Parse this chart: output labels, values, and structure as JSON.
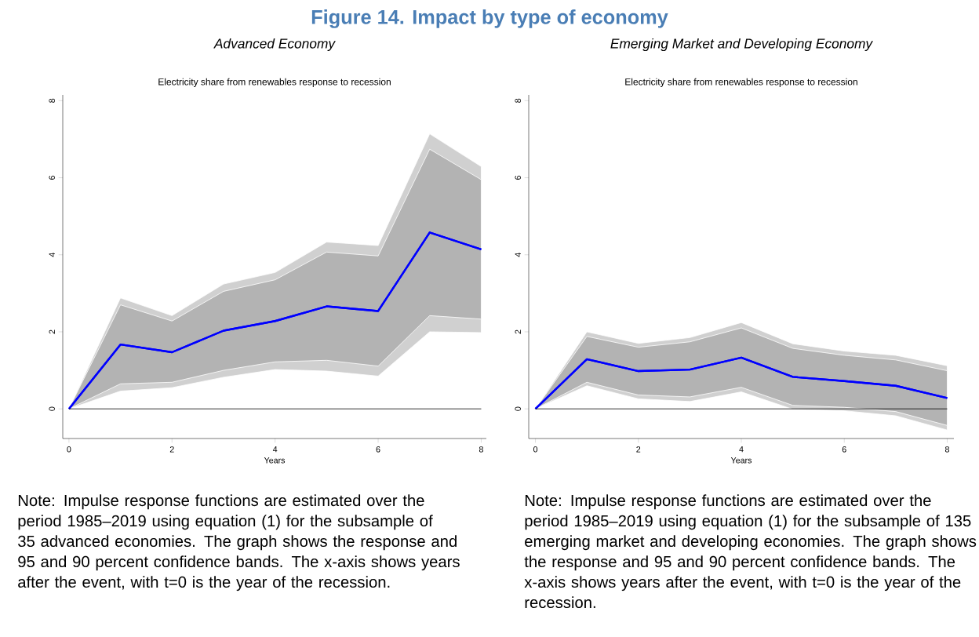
{
  "chart_data": [
    {
      "type": "line",
      "title": "Electricity share from renewables response to recession",
      "subtitle": "Advanced Economy",
      "xlabel": "Years",
      "annotations": [
        "Figure 14. Impact by type of economy",
        "Note: Impulse response functions are estimated over the period 1985–2019 using equation (1) for the subsample of 35 advanced economies. The graph shows the response and 95 and 90 percent confidence bands. The x-axis shows years after the event, with t=0 is the year of the recession."
      ],
      "x": [
        0,
        1,
        2,
        3,
        4,
        5,
        6,
        7,
        8
      ],
      "series": [
        {
          "color": "#0000ff",
          "values": [
            0,
            1.67,
            1.47,
            2.03,
            2.28,
            2.66,
            2.54,
            4.58,
            4.14
          ],
          "lower": [
            0,
            0.46,
            0.55,
            0.82,
            1.02,
            0.98,
            0.85,
            2.0,
            1.98
          ],
          "upper": [
            0,
            2.88,
            2.42,
            3.24,
            3.54,
            4.33,
            4.24,
            7.14,
            6.29
          ]
        },
        {
          "color": "#0000ff",
          "values": [
            0,
            1.67,
            1.47,
            2.03,
            2.28,
            2.66,
            2.54,
            4.58,
            4.14
          ],
          "lower": [
            0,
            0.65,
            0.69,
            1.0,
            1.22,
            1.26,
            1.11,
            2.42,
            2.33
          ],
          "upper": [
            0,
            2.7,
            2.28,
            3.05,
            3.35,
            4.07,
            3.97,
            6.74,
            5.95
          ]
        }
      ],
      "ref_lines": [
        {
          "axis": "y",
          "value": 0,
          "color": "#000000"
        }
      ],
      "xlim": [
        -0.12,
        8.1
      ],
      "ylim": [
        -0.77,
        8.15
      ],
      "xticks": [
        0,
        2,
        4,
        6,
        8
      ],
      "yticks": [
        0,
        2,
        4,
        6,
        8
      ],
      "grid": false
    },
    {
      "type": "line",
      "title": "Electricity share from renewables response to recession",
      "subtitle": "Emerging Market and Developing Economy",
      "xlabel": "Years",
      "annotations": [
        "Note: Impulse response functions are estimated over the period 1985–2019 using equation (1) for the subsample of 135 emerging market and developing economies. The graph shows the response and 95 and 90 percent confidence bands. The x-axis shows years after the event, with t=0 is the year of the recession."
      ],
      "x": [
        0,
        1,
        2,
        3,
        4,
        5,
        6,
        7,
        8
      ],
      "series": [
        {
          "color": "#0000ff",
          "values": [
            0,
            1.29,
            0.98,
            1.02,
            1.33,
            0.83,
            0.72,
            0.6,
            0.28
          ],
          "lower": [
            0,
            0.6,
            0.26,
            0.19,
            0.44,
            -0.01,
            -0.05,
            -0.18,
            -0.55
          ],
          "upper": [
            0,
            2.0,
            1.7,
            1.85,
            2.24,
            1.69,
            1.5,
            1.39,
            1.12
          ]
        },
        {
          "color": "#0000ff",
          "values": [
            0,
            1.29,
            0.98,
            1.02,
            1.33,
            0.83,
            0.72,
            0.6,
            0.28
          ],
          "lower": [
            0,
            0.69,
            0.36,
            0.31,
            0.56,
            0.09,
            0.04,
            -0.07,
            -0.43
          ],
          "upper": [
            0,
            1.88,
            1.6,
            1.74,
            2.1,
            1.57,
            1.39,
            1.27,
            0.99
          ]
        }
      ],
      "ref_lines": [
        {
          "axis": "y",
          "value": 0,
          "color": "#000000"
        }
      ],
      "xlim": [
        -0.13,
        8.13
      ],
      "ylim": [
        -0.77,
        8.15
      ],
      "xticks": [
        0,
        2,
        4,
        6,
        8
      ],
      "yticks": [
        0,
        2,
        4,
        6,
        8
      ],
      "grid": false
    }
  ]
}
